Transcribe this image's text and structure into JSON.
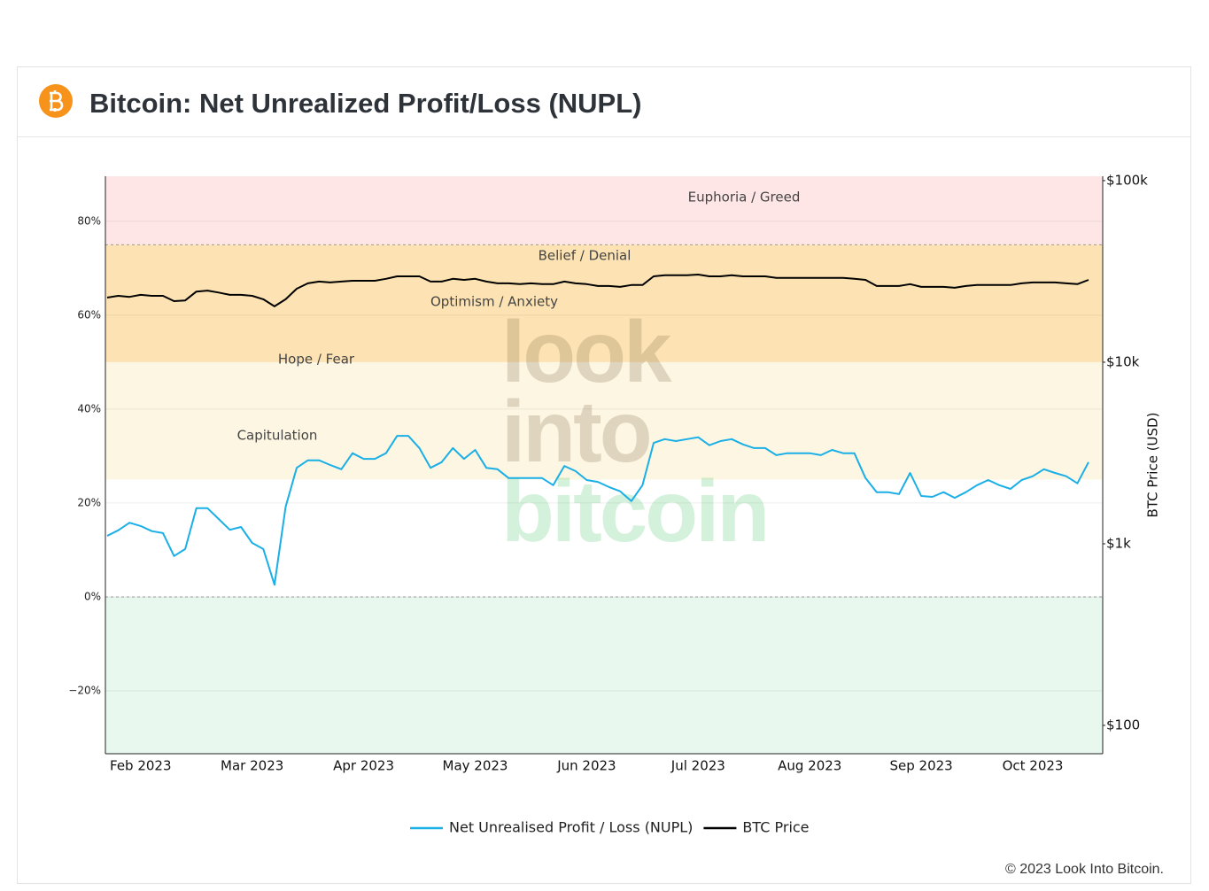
{
  "chart_data": {
    "type": "line",
    "title": "Bitcoin: Net Unrealized Profit/Loss (NUPL)",
    "y2label": "BTC Price (USD)",
    "copyright": "© 2023 Look Into Bitcoin.",
    "watermark": [
      "look",
      "into",
      "bitcoin"
    ],
    "categories": [
      null,
      null,
      null,
      "Feb 2023",
      null,
      null,
      null,
      null,
      null,
      null,
      null,
      null,
      null,
      "Mar 2023",
      null,
      null,
      null,
      null,
      null,
      null,
      null,
      null,
      null,
      "Apr 2023",
      null,
      null,
      null,
      null,
      null,
      null,
      null,
      null,
      null,
      "May 2023",
      null,
      null,
      null,
      null,
      null,
      null,
      null,
      null,
      null,
      "Jun 2023",
      null,
      null,
      null,
      null,
      null,
      null,
      null,
      null,
      null,
      "Jul 2023",
      null,
      null,
      null,
      null,
      null,
      null,
      null,
      null,
      null,
      "Aug 2023",
      null,
      null,
      null,
      null,
      null,
      null,
      null,
      null,
      null,
      "Sep 2023",
      null,
      null,
      null,
      null,
      null,
      null,
      null,
      null,
      null,
      "Oct 2023",
      null,
      null,
      null,
      null,
      null
    ],
    "series": [
      {
        "name": "Net Unrealised Profit / Loss (NUPL)",
        "color": "#1aafe6",
        "values": [
          13.0,
          14.2,
          15.8,
          15.1,
          14.0,
          13.6,
          8.7,
          10.2,
          18.9,
          18.9,
          16.6,
          14.3,
          14.9,
          11.5,
          10.2,
          2.6,
          19.2,
          27.5,
          29.1,
          29.1,
          28.1,
          27.2,
          30.6,
          29.4,
          29.4,
          30.6,
          34.3,
          34.3,
          31.7,
          27.5,
          28.7,
          31.7,
          29.4,
          31.3,
          27.5,
          27.2,
          25.3,
          25.3,
          25.3,
          25.3,
          23.8,
          27.9,
          26.8,
          24.9,
          24.5,
          23.4,
          22.5,
          20.4,
          23.8,
          32.8,
          33.6,
          33.2,
          33.6,
          34.0,
          32.3,
          33.2,
          33.6,
          32.5,
          31.7,
          31.7,
          30.2,
          30.6,
          30.6,
          30.6,
          30.2,
          31.3,
          30.6,
          30.6,
          25.3,
          22.3,
          22.3,
          21.9,
          26.4,
          21.5,
          21.3,
          22.3,
          21.1,
          22.3,
          23.8,
          24.9,
          23.8,
          23.0,
          24.9,
          25.7,
          27.2,
          26.4,
          25.7,
          24.2,
          28.7
        ]
      },
      {
        "name": "BTC Price",
        "color": "#000000",
        "axis": "y2",
        "values": [
          22700,
          23200,
          22900,
          23500,
          23200,
          23200,
          21700,
          21900,
          24500,
          24800,
          24200,
          23500,
          23500,
          23200,
          22200,
          20300,
          22200,
          25400,
          27200,
          27800,
          27500,
          27800,
          28100,
          28100,
          28100,
          28800,
          29700,
          29700,
          29700,
          27800,
          27800,
          28800,
          28400,
          28800,
          27800,
          27200,
          27200,
          26900,
          27200,
          26900,
          26900,
          27800,
          27200,
          26900,
          26300,
          26300,
          26000,
          26600,
          26600,
          29700,
          30100,
          30100,
          30100,
          30400,
          29700,
          29700,
          30100,
          29700,
          29700,
          29700,
          29100,
          29100,
          29100,
          29100,
          29100,
          29100,
          29100,
          28800,
          28400,
          26300,
          26300,
          26300,
          26900,
          26000,
          26000,
          26000,
          25700,
          26300,
          26600,
          26600,
          26600,
          26600,
          27200,
          27500,
          27500,
          27500,
          27200,
          26900,
          28400
        ]
      }
    ],
    "ylim": [
      -33.4,
      89.6
    ],
    "yticks": [
      {
        "value": -20,
        "label": "−20%"
      },
      {
        "value": 0,
        "label": "0%"
      },
      {
        "value": 20,
        "label": "20%"
      },
      {
        "value": 40,
        "label": "40%"
      },
      {
        "value": 60,
        "label": "60%"
      },
      {
        "value": 80,
        "label": "80%"
      }
    ],
    "y2lim": [
      69.8,
      105700
    ],
    "y2scale": "log",
    "y2ticks": [
      {
        "value": 100,
        "label": "$100"
      },
      {
        "value": 1000,
        "label": "$1k"
      },
      {
        "value": 10000,
        "label": "$10k"
      },
      {
        "value": 100000,
        "label": "$100k"
      }
    ],
    "grid": true,
    "zones": [
      {
        "from": 75,
        "to": 100,
        "color": "#fee6e6"
      },
      {
        "from": 50,
        "to": 75,
        "color": "#fde3b3"
      },
      {
        "from": 25,
        "to": 50,
        "color": "#fdf6e3"
      },
      {
        "from": -50,
        "to": 0,
        "color": "#e8f8ef"
      }
    ],
    "dashed_levels": [
      75,
      0
    ],
    "zone_labels": [
      "Euphoria / Greed",
      "Belief / Denial",
      "Optimism / Anxiety",
      "Hope / Fear",
      "Capitulation"
    ],
    "legend": "bottom"
  }
}
